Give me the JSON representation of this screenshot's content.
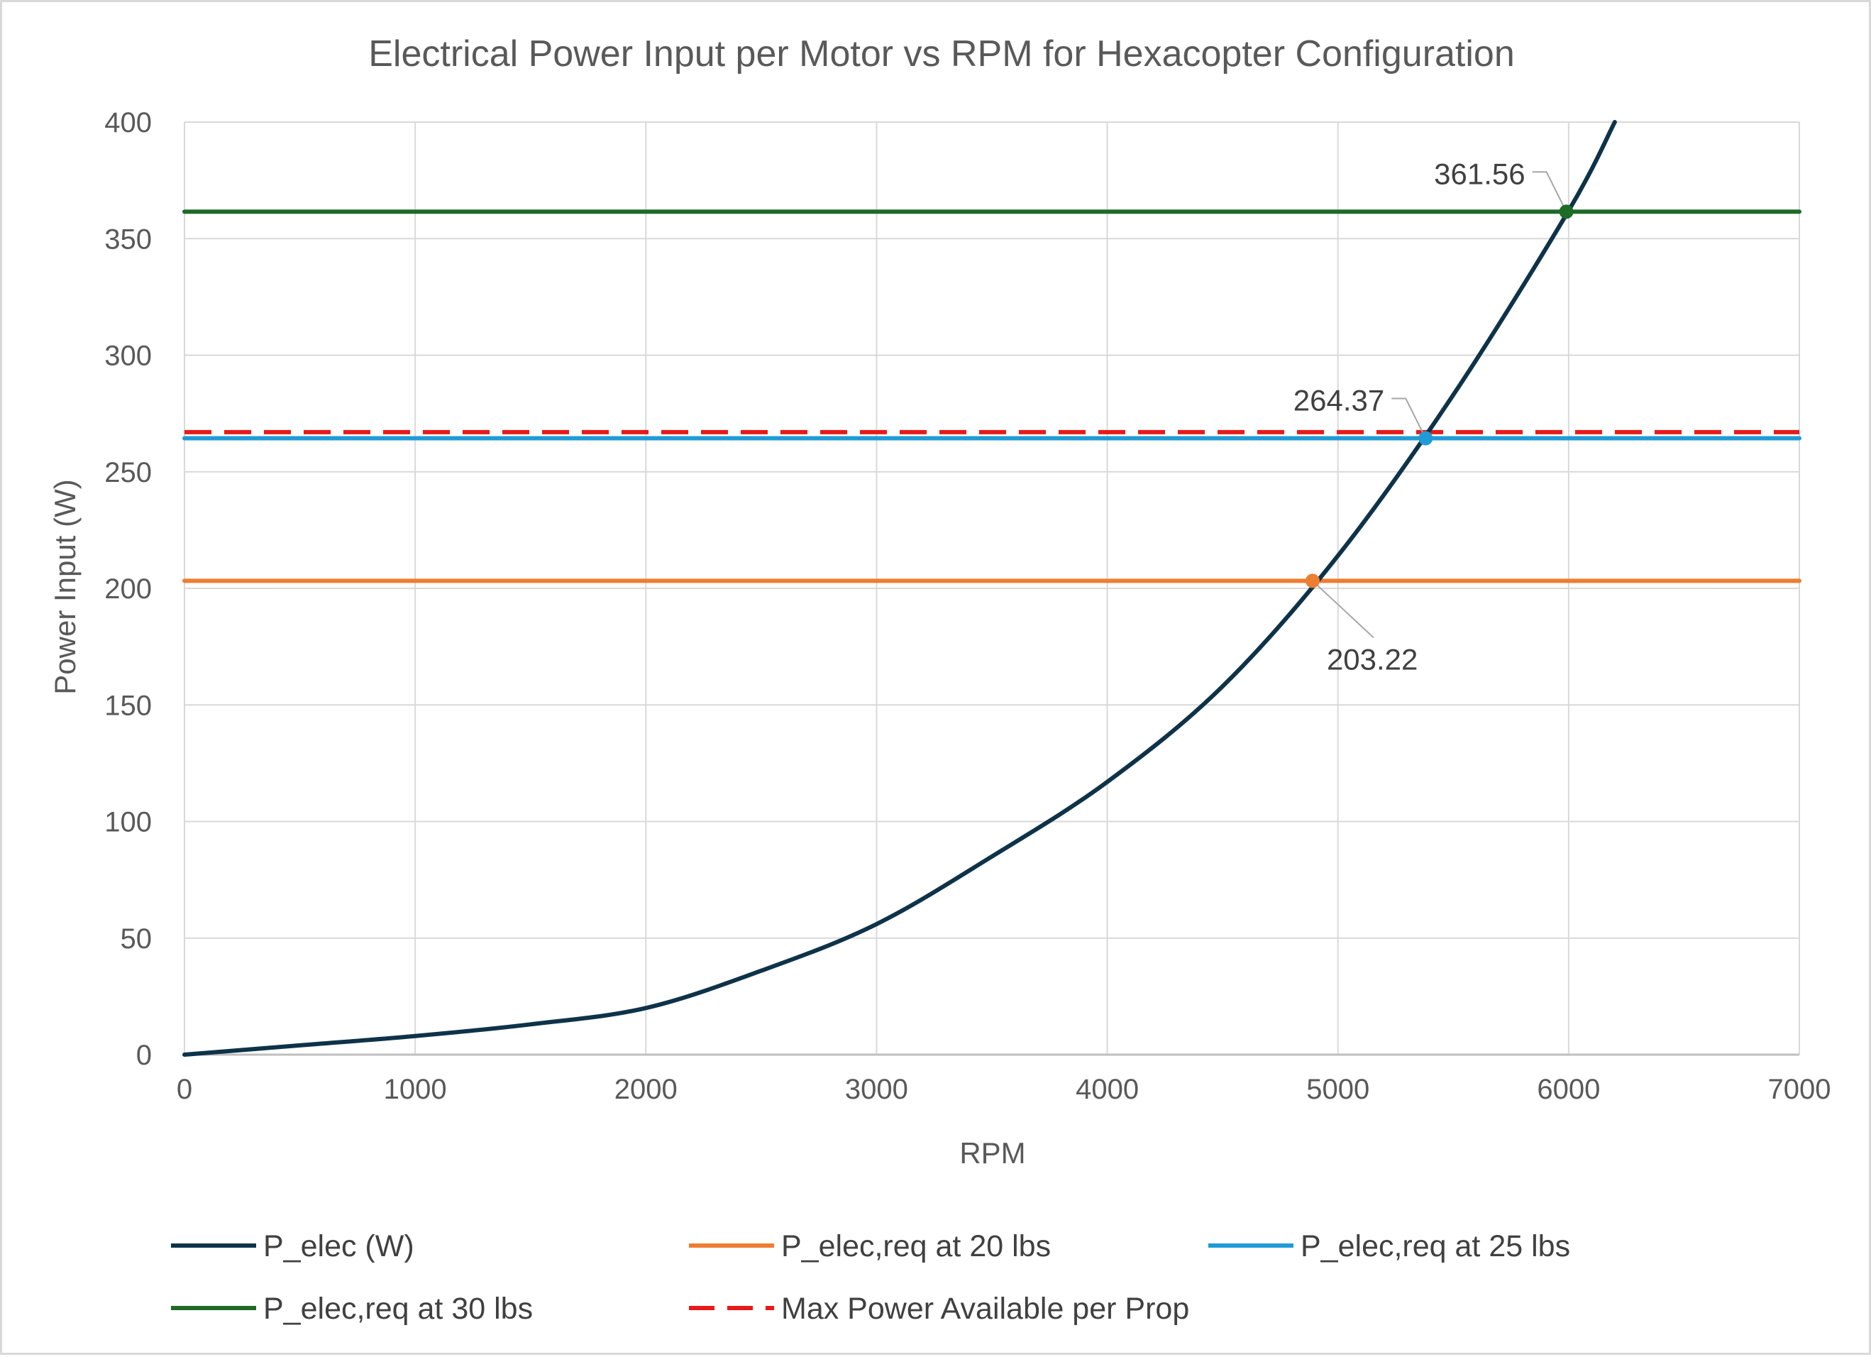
{
  "chart_data": {
    "type": "line",
    "title": "Electrical Power Input per Motor vs RPM for Hexacopter Configuration",
    "xlabel": "RPM",
    "ylabel": "Power Input (W)",
    "xlim": [
      0,
      7000
    ],
    "ylim": [
      0,
      400
    ],
    "x_ticks": [
      0,
      1000,
      2000,
      3000,
      4000,
      5000,
      6000,
      7000
    ],
    "y_ticks": [
      0,
      50,
      100,
      150,
      200,
      250,
      300,
      350,
      400
    ],
    "grid": true,
    "legend_position": "bottom",
    "series": [
      {
        "name": "P_elec (W)",
        "color": "#0e3349",
        "style": "solid",
        "x": [
          0,
          500,
          1000,
          1500,
          2000,
          2500,
          3000,
          3500,
          4000,
          4500,
          5000,
          5500,
          6000,
          6200
        ],
        "y": [
          0,
          4,
          8,
          13,
          20,
          36,
          56,
          85,
          117,
          158,
          214,
          283,
          362,
          400
        ]
      },
      {
        "name": "P_elec,req at 20 lbs",
        "color": "#ed7d31",
        "style": "solid",
        "x": [
          0,
          7000
        ],
        "y": [
          203.22,
          203.22
        ]
      },
      {
        "name": "P_elec,req at 25 lbs",
        "color": "#1f9bd7",
        "style": "solid",
        "x": [
          0,
          7000
        ],
        "y": [
          264.37,
          264.37
        ]
      },
      {
        "name": "P_elec,req at 30 lbs",
        "color": "#1e6b27",
        "style": "solid",
        "x": [
          0,
          7000
        ],
        "y": [
          361.56,
          361.56
        ]
      },
      {
        "name": "Max Power Available per Prop",
        "color": "#e81919",
        "style": "dashed",
        "x": [
          0,
          7000
        ],
        "y": [
          267,
          267
        ]
      }
    ],
    "annotations": [
      {
        "text": "203.22",
        "x": 4890,
        "y": 203.22,
        "color": "#ed7d31",
        "label_side": "below-right"
      },
      {
        "text": "264.37",
        "x": 5380,
        "y": 264.37,
        "color": "#1f9bd7",
        "label_side": "above-left"
      },
      {
        "text": "361.56",
        "x": 5990,
        "y": 361.56,
        "color": "#1e6b27",
        "label_side": "above-left"
      }
    ]
  }
}
